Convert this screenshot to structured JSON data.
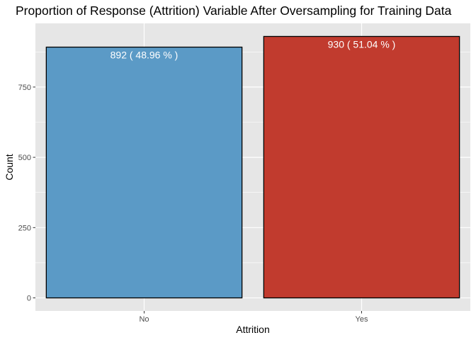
{
  "chart_data": {
    "type": "bar",
    "title": "Proportion of Response (Attrition) Variable After Oversampling for Training Data",
    "xlabel": "Attrition",
    "ylabel": "Count",
    "categories": [
      "No",
      "Yes"
    ],
    "values": [
      892,
      930
    ],
    "data_labels": [
      "892 ( 48.96 % )",
      "930 ( 51.04 % )"
    ],
    "colors": [
      "#5b9ac6",
      "#c13b2e"
    ],
    "yticks": [
      0,
      250,
      500,
      750
    ],
    "ytick_labels": [
      "0",
      "250",
      "500",
      "750"
    ],
    "ylim": [
      -46.5,
      976.5
    ],
    "grid": true,
    "panel_background": "#e6e6e6",
    "grid_color": "#ffffff"
  }
}
